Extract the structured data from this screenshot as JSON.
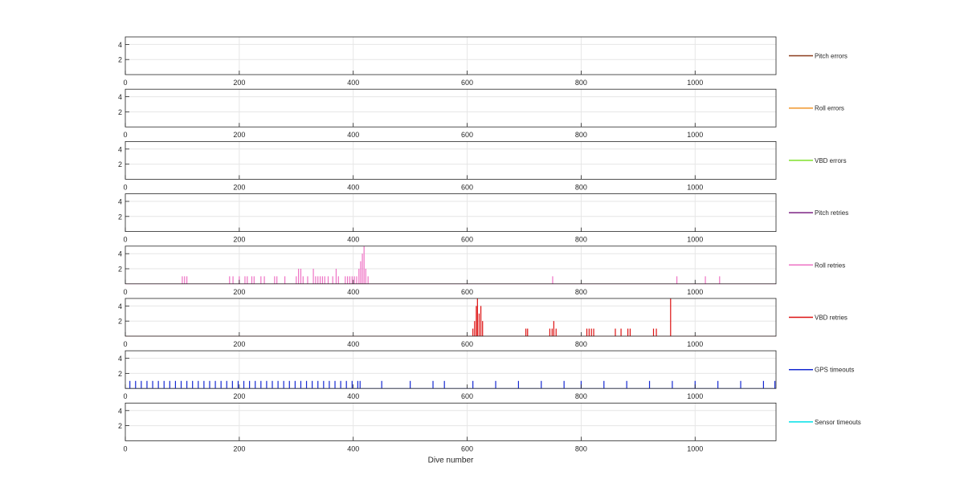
{
  "chart_data": {
    "type": "line",
    "xlabel": "Dive number",
    "xlim": [
      0,
      1142
    ],
    "xticks": [
      "0",
      "200",
      "400",
      "600",
      "800",
      "1000"
    ],
    "ylim": [
      0,
      5
    ],
    "yticks": [
      "2",
      "4"
    ],
    "grid": true,
    "legend_placement": "right of each subplot",
    "series": [
      {
        "name": "Pitch errors",
        "color": "#8B3A1A",
        "points": []
      },
      {
        "name": "Roll errors",
        "color": "#F0962A",
        "points": []
      },
      {
        "name": "VBD errors",
        "color": "#7FE02A",
        "points": []
      },
      {
        "name": "Pitch retries",
        "color": "#7B2382",
        "points": []
      },
      {
        "name": "Roll retries",
        "color": "#EE72C4",
        "points": [
          [
            100,
            1
          ],
          [
            104,
            1
          ],
          [
            108,
            1
          ],
          [
            183,
            1
          ],
          [
            189,
            1
          ],
          [
            200,
            1
          ],
          [
            210,
            1
          ],
          [
            214,
            1
          ],
          [
            222,
            1
          ],
          [
            226,
            1
          ],
          [
            238,
            1
          ],
          [
            244,
            1
          ],
          [
            262,
            1
          ],
          [
            266,
            1
          ],
          [
            280,
            1
          ],
          [
            300,
            1
          ],
          [
            304,
            2
          ],
          [
            308,
            2
          ],
          [
            312,
            1
          ],
          [
            320,
            1
          ],
          [
            330,
            2
          ],
          [
            334,
            1
          ],
          [
            338,
            1
          ],
          [
            342,
            1
          ],
          [
            346,
            1
          ],
          [
            350,
            1
          ],
          [
            356,
            1
          ],
          [
            364,
            1
          ],
          [
            370,
            2
          ],
          [
            374,
            1
          ],
          [
            386,
            1
          ],
          [
            390,
            1
          ],
          [
            394,
            1
          ],
          [
            398,
            1
          ],
          [
            402,
            1
          ],
          [
            406,
            1
          ],
          [
            410,
            2
          ],
          [
            413,
            3
          ],
          [
            416,
            4
          ],
          [
            419,
            5
          ],
          [
            422,
            2
          ],
          [
            426,
            1
          ],
          [
            750,
            1
          ],
          [
            968,
            1
          ],
          [
            1018,
            1
          ],
          [
            1043,
            1
          ]
        ]
      },
      {
        "name": "VBD retries",
        "color": "#DD1111",
        "points": [
          [
            610,
            1
          ],
          [
            613,
            2
          ],
          [
            616,
            4
          ],
          [
            618,
            5
          ],
          [
            621,
            3
          ],
          [
            624,
            4
          ],
          [
            627,
            2
          ],
          [
            703,
            1
          ],
          [
            706,
            1
          ],
          [
            745,
            1
          ],
          [
            749,
            1
          ],
          [
            752,
            2
          ],
          [
            756,
            1
          ],
          [
            810,
            1
          ],
          [
            814,
            1
          ],
          [
            818,
            1
          ],
          [
            822,
            1
          ],
          [
            860,
            1
          ],
          [
            870,
            1
          ],
          [
            882,
            1
          ],
          [
            886,
            1
          ],
          [
            927,
            1
          ],
          [
            932,
            1
          ],
          [
            957,
            5
          ]
        ]
      },
      {
        "name": "GPS timeouts",
        "color": "#1428D2",
        "points": [
          [
            8,
            1
          ],
          [
            18,
            1
          ],
          [
            28,
            1
          ],
          [
            38,
            1
          ],
          [
            48,
            1
          ],
          [
            58,
            1
          ],
          [
            68,
            1
          ],
          [
            78,
            1
          ],
          [
            88,
            1
          ],
          [
            98,
            1
          ],
          [
            108,
            1
          ],
          [
            118,
            1
          ],
          [
            128,
            1
          ],
          [
            138,
            1
          ],
          [
            148,
            1
          ],
          [
            158,
            1
          ],
          [
            168,
            1
          ],
          [
            178,
            1
          ],
          [
            188,
            1
          ],
          [
            198,
            1
          ],
          [
            208,
            1
          ],
          [
            218,
            1
          ],
          [
            228,
            1
          ],
          [
            238,
            1
          ],
          [
            248,
            1
          ],
          [
            258,
            1
          ],
          [
            268,
            1
          ],
          [
            278,
            1
          ],
          [
            288,
            1
          ],
          [
            298,
            1
          ],
          [
            308,
            1
          ],
          [
            318,
            1
          ],
          [
            328,
            1
          ],
          [
            338,
            1
          ],
          [
            348,
            1
          ],
          [
            358,
            1
          ],
          [
            368,
            1
          ],
          [
            378,
            1
          ],
          [
            388,
            1
          ],
          [
            398,
            1
          ],
          [
            408,
            1
          ],
          [
            412,
            1
          ],
          [
            450,
            1
          ],
          [
            500,
            1
          ],
          [
            540,
            1
          ],
          [
            560,
            1
          ],
          [
            610,
            1
          ],
          [
            650,
            1
          ],
          [
            690,
            1
          ],
          [
            730,
            1
          ],
          [
            770,
            1
          ],
          [
            800,
            1
          ],
          [
            840,
            1
          ],
          [
            880,
            1
          ],
          [
            920,
            1
          ],
          [
            960,
            1
          ],
          [
            1000,
            1
          ],
          [
            1040,
            1
          ],
          [
            1080,
            1
          ],
          [
            1120,
            1
          ],
          [
            1140,
            1
          ]
        ]
      },
      {
        "name": "Sensor timeouts",
        "color": "#00E0E8",
        "points": []
      }
    ]
  }
}
